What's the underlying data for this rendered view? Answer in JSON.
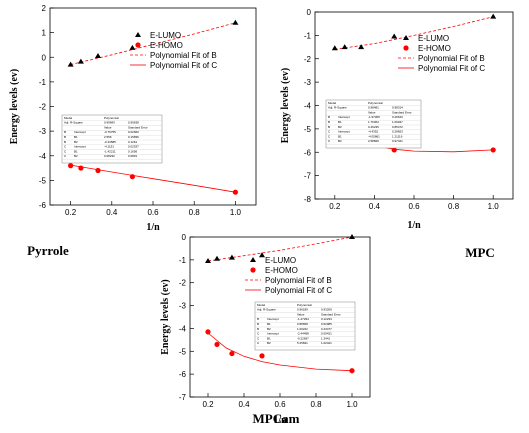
{
  "chart_data": [
    {
      "id": "pyrrole",
      "type": "scatter",
      "caption": "Pyrrole",
      "xlabel": "1/n",
      "ylabel": "Energy levels (ev)",
      "xlim": [
        0.1,
        1.1
      ],
      "ylim": [
        -6,
        2
      ],
      "xticks": [
        "0.2",
        "0.4",
        "0.6",
        "0.8",
        "1.0"
      ],
      "yticks": [
        "-6",
        "-5",
        "-4",
        "-3",
        "-2",
        "-1",
        "0",
        "1",
        "2"
      ],
      "series": [
        {
          "name": "E-LUMO",
          "marker": "triangle",
          "color": "#000000",
          "x": [
            0.2,
            0.25,
            0.333,
            0.5,
            1.0
          ],
          "y": [
            -0.3,
            -0.18,
            0.05,
            0.38,
            1.4
          ]
        },
        {
          "name": "E-HOMO",
          "marker": "circle",
          "color": "#ff0000",
          "x": [
            0.2,
            0.25,
            0.333,
            0.5,
            1.0
          ],
          "y": [
            -4.4,
            -4.5,
            -4.6,
            -4.85,
            -5.48
          ]
        }
      ],
      "fits": [
        {
          "name": "Polynomial Fit of B",
          "style": "dashed",
          "color": "#ff0000",
          "x": [
            0.2,
            0.4,
            0.6,
            0.8,
            1.0
          ],
          "y": [
            -0.3,
            0.1,
            0.52,
            0.95,
            1.4
          ]
        },
        {
          "name": "Polynomial Fit of C",
          "style": "solid",
          "color": "#ff0000",
          "x": [
            0.2,
            0.4,
            0.6,
            0.8,
            1.0
          ],
          "y": [
            -4.38,
            -4.66,
            -4.93,
            -5.2,
            -5.48
          ]
        }
      ],
      "legend": "top-right",
      "table": {
        "model_label": "Model",
        "model_value": "Polynomial",
        "r2_label": "Adj. R-Square",
        "r2_values": [
          "0.99843",
          "0.99638"
        ],
        "headers": [
          "",
          "",
          "Value",
          "Standard Error"
        ],
        "rows": [
          [
            "B",
            "Intercept",
            "-0.76755",
            "0.02660"
          ],
          [
            "B",
            "B1",
            "2.556",
            "0.15836"
          ],
          [
            "B",
            "B2",
            "-0.43585",
            "0.1261"
          ],
          [
            "C",
            "Intercept",
            "-4.1151",
            "0.02537"
          ],
          [
            "C",
            "B1",
            "-1.42211",
            "0.1656"
          ],
          [
            "C",
            "B2",
            "0.08232",
            "0.0891"
          ]
        ]
      }
    },
    {
      "id": "mpc",
      "type": "scatter",
      "caption": "MPC",
      "xlabel": "1/n",
      "ylabel": "Energy levels (ev)",
      "xlim": [
        0.1,
        1.1
      ],
      "ylim": [
        -8,
        0
      ],
      "xticks": [
        "0.2",
        "0.4",
        "0.6",
        "0.8",
        "1.0"
      ],
      "yticks": [
        "-8",
        "-7",
        "-6",
        "-5",
        "-4",
        "-3",
        "-2",
        "-1",
        "0"
      ],
      "series": [
        {
          "name": "E-LUMO",
          "marker": "triangle",
          "color": "#000000",
          "x": [
            0.2,
            0.25,
            0.333,
            0.5,
            1.0
          ],
          "y": [
            -1.55,
            -1.5,
            -1.5,
            -1.05,
            -0.2
          ]
        },
        {
          "name": "E-HOMO",
          "marker": "circle",
          "color": "#ff0000",
          "x": [
            0.2,
            0.25,
            0.333,
            0.5,
            1.0
          ],
          "y": [
            -5.1,
            -5.5,
            -5.6,
            -5.9,
            -5.9
          ]
        }
      ],
      "fits": [
        {
          "name": "Polynomial Fit of B",
          "style": "dashed",
          "color": "#ff0000",
          "x": [
            0.2,
            0.4,
            0.6,
            0.8,
            1.0
          ],
          "y": [
            -1.6,
            -1.35,
            -1.0,
            -0.62,
            -0.2
          ]
        },
        {
          "name": "Polynomial Fit of C",
          "style": "solid",
          "color": "#ff0000",
          "x": [
            0.2,
            0.3,
            0.4,
            0.5,
            0.6,
            0.8,
            1.0
          ],
          "y": [
            -5.1,
            -5.48,
            -5.72,
            -5.87,
            -5.95,
            -5.98,
            -5.9
          ]
        }
      ],
      "legend": "top-right",
      "table": {
        "model_label": "Model",
        "model_value": "Polynomial",
        "r2_label": "Adj. R-Square",
        "r2_values": [
          "0.98481",
          "0.98314"
        ],
        "headers": [
          "",
          "",
          "Value",
          "Standard Error"
        ],
        "rows": [
          [
            "B",
            "Intercept",
            "-1.97005",
            "0.26643"
          ],
          [
            "B",
            "B1",
            "1.76364",
            "1.09947"
          ],
          [
            "B",
            "B2",
            "0.46235",
            "0.85472"
          ],
          [
            "C",
            "Intercept",
            "-4.4352",
            "0.28653"
          ],
          [
            "C",
            "B1",
            "-4.05861",
            "1.21116"
          ],
          [
            "C",
            "B2",
            "2.58829",
            "0.97421"
          ]
        ]
      }
    },
    {
      "id": "mpcam",
      "type": "scatter",
      "caption": "MPCam",
      "xlabel": "1/n",
      "ylabel": "Energy levels (ev)",
      "xlim": [
        0.1,
        1.1
      ],
      "ylim": [
        -7,
        0
      ],
      "xticks": [
        "0.2",
        "0.4",
        "0.6",
        "0.8",
        "1.0"
      ],
      "yticks": [
        "-7",
        "-6",
        "-5",
        "-4",
        "-3",
        "-2",
        "-1",
        "0"
      ],
      "series": [
        {
          "name": "E-LUMO",
          "marker": "triangle",
          "color": "#000000",
          "x": [
            0.2,
            0.25,
            0.333,
            0.5,
            1.0
          ],
          "y": [
            -1.05,
            -0.95,
            -0.9,
            -0.8,
            0.0
          ]
        },
        {
          "name": "E-HOMO",
          "marker": "circle",
          "color": "#ff0000",
          "x": [
            0.2,
            0.25,
            0.333,
            0.5,
            1.0
          ],
          "y": [
            -4.15,
            -4.7,
            -5.1,
            -5.2,
            -5.85
          ]
        }
      ],
      "fits": [
        {
          "name": "Polynomial Fit of B",
          "style": "dashed",
          "color": "#ff0000",
          "x": [
            0.2,
            0.4,
            0.6,
            0.8,
            1.0
          ],
          "y": [
            -1.05,
            -0.82,
            -0.58,
            -0.3,
            0.0
          ]
        },
        {
          "name": "Polynomial Fit of C",
          "style": "solid",
          "color": "#ff0000",
          "x": [
            0.2,
            0.3,
            0.4,
            0.5,
            0.6,
            0.8,
            1.0
          ],
          "y": [
            -4.2,
            -4.85,
            -5.22,
            -5.45,
            -5.6,
            -5.78,
            -5.85
          ]
        }
      ],
      "legend": "top-right",
      "table": {
        "model_label": "Model",
        "model_value": "Polynomial",
        "r2_label": "Adj. R-Square",
        "r2_values": [
          "0.96189",
          "0.93209"
        ],
        "headers": [
          "",
          "",
          "Value",
          "Standard Error"
        ],
        "rows": [
          [
            "B",
            "Intercept",
            "-1.27294",
            "0.12234"
          ],
          [
            "B",
            "B1",
            "0.88658",
            "0.52085"
          ],
          [
            "B",
            "B2",
            "1.00222",
            "0.43477"
          ],
          [
            "C",
            "Intercept",
            "-2.44498",
            "0.09421"
          ],
          [
            "C",
            "B1",
            "-9.22697",
            "1.3441"
          ],
          [
            "C",
            "B2",
            "5.25841",
            "1.02421"
          ]
        ]
      }
    }
  ]
}
